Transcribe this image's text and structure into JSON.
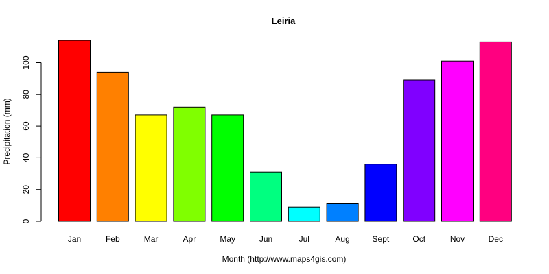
{
  "chart_data": {
    "type": "bar",
    "title": "Leiria",
    "xlabel": "Month (http://www.maps4gis.com)",
    "ylabel": "Precipitation (mm)",
    "categories": [
      "Jan",
      "Feb",
      "Mar",
      "Apr",
      "May",
      "Jun",
      "Jul",
      "Aug",
      "Sept",
      "Oct",
      "Nov",
      "Dec"
    ],
    "values": [
      114,
      94,
      67,
      72,
      67,
      31,
      9,
      11,
      36,
      89,
      101,
      113
    ],
    "colors": [
      "#FF0000",
      "#FF8000",
      "#FFFF00",
      "#80FF00",
      "#00FF00",
      "#00FF80",
      "#00FFFF",
      "#0080FF",
      "#0000FF",
      "#8000FF",
      "#FF00FF",
      "#FF0080"
    ],
    "yticks": [
      "0",
      "20",
      "40",
      "60",
      "80",
      "100"
    ],
    "ylim": [
      0,
      115
    ],
    "grid": false,
    "legend": "none"
  }
}
